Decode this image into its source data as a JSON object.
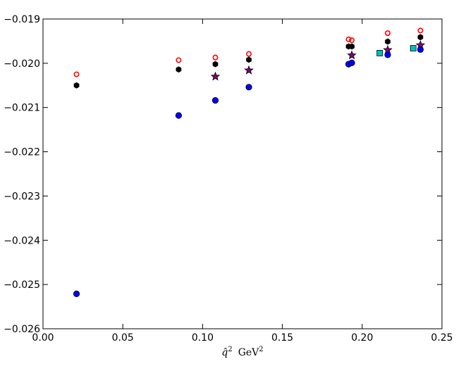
{
  "chart_data": {
    "type": "scatter",
    "xlabel": "q̂² GeV²",
    "xlabel_parts": {
      "q": "q̂",
      "q_sup": "2",
      "unit": "GeV",
      "unit_sup": "2"
    },
    "xlim": [
      0.0,
      0.25
    ],
    "ylim": [
      -0.026,
      -0.019
    ],
    "xticks": [
      0.0,
      0.05,
      0.1,
      0.15,
      0.2,
      0.25
    ],
    "xtick_labels": [
      "0.00",
      "0.05",
      "0.10",
      "0.15",
      "0.20",
      "0.25"
    ],
    "yticks": [
      -0.026,
      -0.025,
      -0.024,
      -0.023,
      -0.022,
      -0.021,
      -0.02,
      -0.019
    ],
    "ytick_labels": [
      "−0.026",
      "−0.025",
      "−0.024",
      "−0.023",
      "−0.022",
      "−0.021",
      "−0.020",
      "−0.019"
    ],
    "grid": false,
    "series": [
      {
        "marker": "open-circle",
        "color": "#ff0000",
        "points": [
          [
            0.021,
            -0.02025
          ],
          [
            0.085,
            -0.01993
          ],
          [
            0.108,
            -0.01987
          ],
          [
            0.129,
            -0.01979
          ],
          [
            0.1915,
            -0.01946
          ],
          [
            0.1935,
            -0.01948
          ],
          [
            0.216,
            -0.01932
          ],
          [
            0.2365,
            -0.01926
          ]
        ]
      },
      {
        "marker": "hexagon",
        "color": "#000000",
        "points": [
          [
            0.021,
            -0.0205
          ],
          [
            0.085,
            -0.02014
          ],
          [
            0.108,
            -0.02002
          ],
          [
            0.129,
            -0.01992
          ],
          [
            0.1915,
            -0.01962
          ],
          [
            0.1935,
            -0.01962
          ],
          [
            0.216,
            -0.01951
          ],
          [
            0.2365,
            -0.01941
          ]
        ]
      },
      {
        "marker": "star",
        "color": "#800080",
        "points": [
          [
            0.108,
            -0.0203
          ],
          [
            0.129,
            -0.02016
          ],
          [
            0.1935,
            -0.01982
          ],
          [
            0.216,
            -0.0197
          ],
          [
            0.2365,
            -0.01959
          ]
        ]
      },
      {
        "marker": "square",
        "color": "#00bfbf",
        "points": [
          [
            0.211,
            -0.01977
          ],
          [
            0.232,
            -0.01966
          ]
        ]
      },
      {
        "marker": "filled-circle",
        "color": "#0000ff",
        "points": [
          [
            0.021,
            -0.02521
          ],
          [
            0.085,
            -0.02118
          ],
          [
            0.108,
            -0.02084
          ],
          [
            0.129,
            -0.02054
          ],
          [
            0.1915,
            -0.02002
          ],
          [
            0.1935,
            -0.01999
          ],
          [
            0.216,
            -0.01981
          ],
          [
            0.2365,
            -0.01969
          ]
        ]
      }
    ]
  }
}
